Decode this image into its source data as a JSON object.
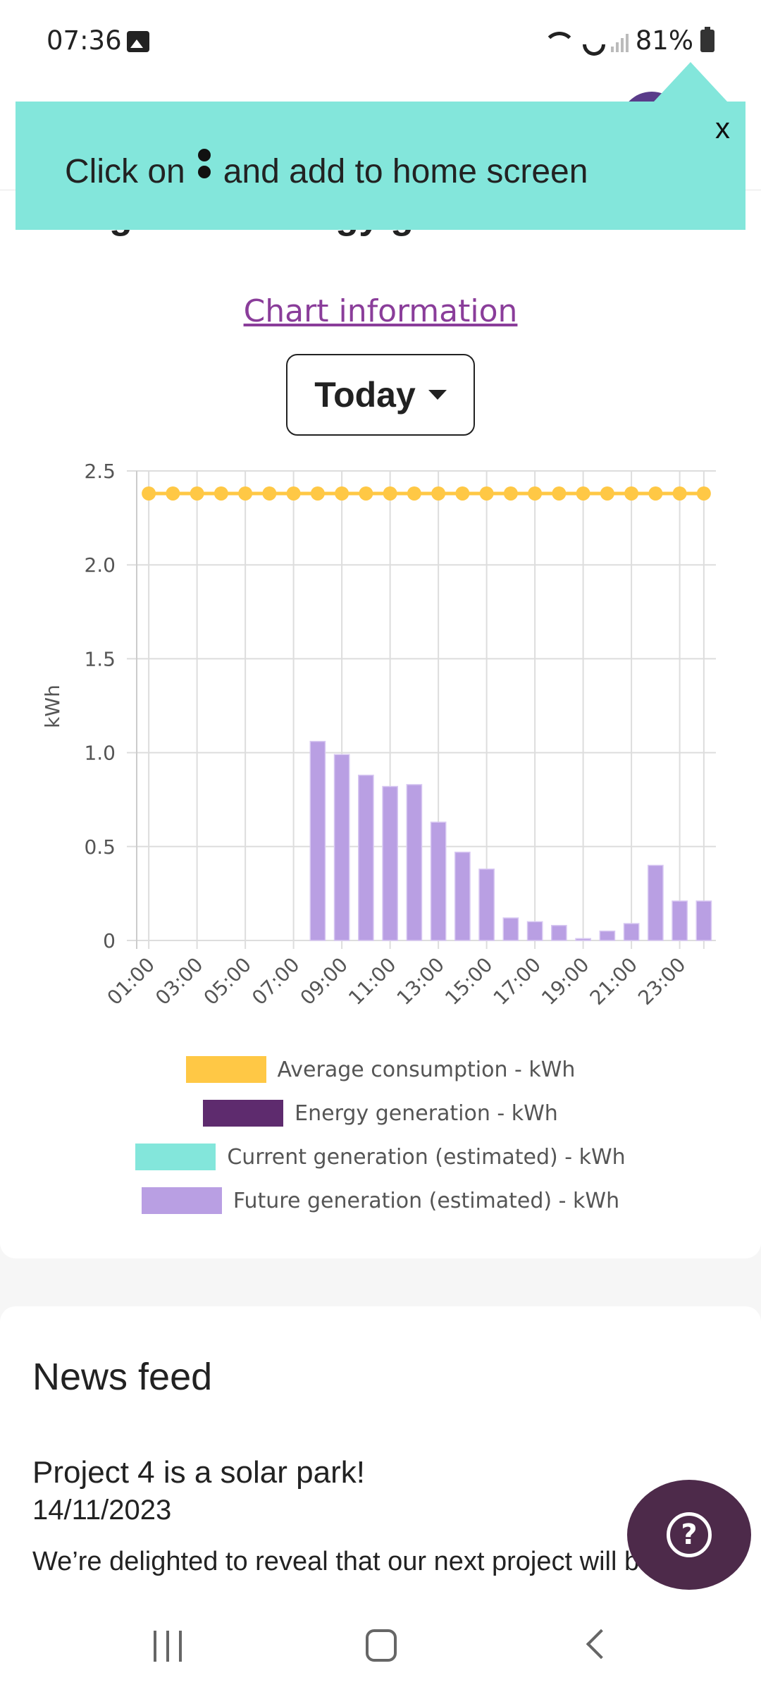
{
  "status_bar": {
    "time": "07:36",
    "battery": "81%",
    "icons": [
      "image-icon",
      "wifi-icon",
      "call-icon",
      "signal-icon",
      "battery-icon"
    ]
  },
  "tooltip": {
    "text_before": "Click on",
    "text_after": "and add to home screen",
    "close_label": "x"
  },
  "card": {
    "title": "Craig Fatha energy generation",
    "chart_info_link": "Chart information",
    "period_selected": "Today"
  },
  "colors": {
    "average_consumption": "#ffc845",
    "energy_generation": "#5e2b6e",
    "current_generation": "#83e6db",
    "future_generation": "#b99fe3"
  },
  "chart_data": {
    "type": "bar",
    "ylabel": "kWh",
    "ylim": [
      0,
      2.5
    ],
    "yticks": [
      "0",
      "0.5",
      "1.0",
      "1.5",
      "2.0",
      "2.5"
    ],
    "categories": [
      "01:00",
      "02:00",
      "03:00",
      "04:00",
      "05:00",
      "06:00",
      "07:00",
      "08:00",
      "09:00",
      "10:00",
      "11:00",
      "12:00",
      "13:00",
      "14:00",
      "15:00",
      "16:00",
      "17:00",
      "18:00",
      "19:00",
      "20:00",
      "21:00",
      "22:00",
      "23:00",
      "24:00"
    ],
    "xtick_labels": [
      "01:00",
      "03:00",
      "05:00",
      "07:00",
      "09:00",
      "11:00",
      "13:00",
      "15:00",
      "17:00",
      "19:00",
      "21:00",
      "23:00"
    ],
    "grid": true,
    "legend_position": "bottom",
    "series": [
      {
        "name": "Average consumption - kWh",
        "type": "line",
        "values": [
          2.38,
          2.38,
          2.38,
          2.38,
          2.38,
          2.38,
          2.38,
          2.38,
          2.38,
          2.38,
          2.38,
          2.38,
          2.38,
          2.38,
          2.38,
          2.38,
          2.38,
          2.38,
          2.38,
          2.38,
          2.38,
          2.38,
          2.38,
          2.38
        ]
      },
      {
        "name": "Energy generation - kWh",
        "type": "bar",
        "values": [
          0,
          0,
          0,
          0,
          0,
          0,
          0,
          0,
          0,
          0,
          0,
          0,
          0,
          0,
          0,
          0,
          0,
          0,
          0,
          0,
          0,
          0,
          0,
          0
        ]
      },
      {
        "name": "Current generation (estimated) - kWh",
        "type": "bar",
        "values": [
          0,
          0,
          0,
          0,
          0,
          0,
          0,
          0,
          0,
          0,
          0,
          0,
          0,
          0,
          0,
          0,
          0,
          0,
          0,
          0,
          0,
          0,
          0,
          0
        ]
      },
      {
        "name": "Future generation (estimated) - kWh",
        "type": "bar",
        "values": [
          0,
          0,
          0,
          0,
          0,
          0,
          0,
          1.06,
          0.99,
          0.88,
          0.82,
          0.83,
          0.63,
          0.47,
          0.38,
          0.12,
          0.1,
          0.08,
          0.01,
          0.05,
          0.09,
          0.4,
          0.21,
          0.21
        ]
      }
    ]
  },
  "news": {
    "title": "News feed",
    "item_title": "Project 4 is a solar park!",
    "item_date": "14/11/2023",
    "item_body": "We’re delighted to reveal that our next project will be"
  },
  "help_label": "?"
}
